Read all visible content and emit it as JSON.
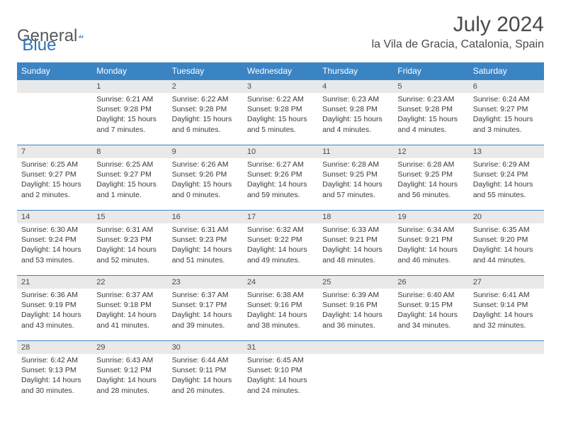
{
  "logo": {
    "general": "General",
    "blue": "Blue"
  },
  "title": "July 2024",
  "location": "la Vila de Gracia, Catalonia, Spain",
  "colors": {
    "header_bg": "#3b84c4",
    "header_fg": "#ffffff",
    "daynum_bg": "#e9e9e9",
    "border": "#3b84c4",
    "logo_blue": "#2e72b8",
    "logo_gray": "#56595c",
    "text": "#3a3a3a",
    "background": "#ffffff"
  },
  "typography": {
    "title_fontsize": 30,
    "location_fontsize": 16,
    "header_fontsize": 12,
    "body_fontsize": 10.5
  },
  "weekdays": [
    "Sunday",
    "Monday",
    "Tuesday",
    "Wednesday",
    "Thursday",
    "Friday",
    "Saturday"
  ],
  "weeks": [
    [
      {
        "n": "",
        "sr": "",
        "ss": "",
        "dl": ""
      },
      {
        "n": "1",
        "sr": "Sunrise: 6:21 AM",
        "ss": "Sunset: 9:28 PM",
        "dl": "Daylight: 15 hours and 7 minutes."
      },
      {
        "n": "2",
        "sr": "Sunrise: 6:22 AM",
        "ss": "Sunset: 9:28 PM",
        "dl": "Daylight: 15 hours and 6 minutes."
      },
      {
        "n": "3",
        "sr": "Sunrise: 6:22 AM",
        "ss": "Sunset: 9:28 PM",
        "dl": "Daylight: 15 hours and 5 minutes."
      },
      {
        "n": "4",
        "sr": "Sunrise: 6:23 AM",
        "ss": "Sunset: 9:28 PM",
        "dl": "Daylight: 15 hours and 4 minutes."
      },
      {
        "n": "5",
        "sr": "Sunrise: 6:23 AM",
        "ss": "Sunset: 9:28 PM",
        "dl": "Daylight: 15 hours and 4 minutes."
      },
      {
        "n": "6",
        "sr": "Sunrise: 6:24 AM",
        "ss": "Sunset: 9:27 PM",
        "dl": "Daylight: 15 hours and 3 minutes."
      }
    ],
    [
      {
        "n": "7",
        "sr": "Sunrise: 6:25 AM",
        "ss": "Sunset: 9:27 PM",
        "dl": "Daylight: 15 hours and 2 minutes."
      },
      {
        "n": "8",
        "sr": "Sunrise: 6:25 AM",
        "ss": "Sunset: 9:27 PM",
        "dl": "Daylight: 15 hours and 1 minute."
      },
      {
        "n": "9",
        "sr": "Sunrise: 6:26 AM",
        "ss": "Sunset: 9:26 PM",
        "dl": "Daylight: 15 hours and 0 minutes."
      },
      {
        "n": "10",
        "sr": "Sunrise: 6:27 AM",
        "ss": "Sunset: 9:26 PM",
        "dl": "Daylight: 14 hours and 59 minutes."
      },
      {
        "n": "11",
        "sr": "Sunrise: 6:28 AM",
        "ss": "Sunset: 9:25 PM",
        "dl": "Daylight: 14 hours and 57 minutes."
      },
      {
        "n": "12",
        "sr": "Sunrise: 6:28 AM",
        "ss": "Sunset: 9:25 PM",
        "dl": "Daylight: 14 hours and 56 minutes."
      },
      {
        "n": "13",
        "sr": "Sunrise: 6:29 AM",
        "ss": "Sunset: 9:24 PM",
        "dl": "Daylight: 14 hours and 55 minutes."
      }
    ],
    [
      {
        "n": "14",
        "sr": "Sunrise: 6:30 AM",
        "ss": "Sunset: 9:24 PM",
        "dl": "Daylight: 14 hours and 53 minutes."
      },
      {
        "n": "15",
        "sr": "Sunrise: 6:31 AM",
        "ss": "Sunset: 9:23 PM",
        "dl": "Daylight: 14 hours and 52 minutes."
      },
      {
        "n": "16",
        "sr": "Sunrise: 6:31 AM",
        "ss": "Sunset: 9:23 PM",
        "dl": "Daylight: 14 hours and 51 minutes."
      },
      {
        "n": "17",
        "sr": "Sunrise: 6:32 AM",
        "ss": "Sunset: 9:22 PM",
        "dl": "Daylight: 14 hours and 49 minutes."
      },
      {
        "n": "18",
        "sr": "Sunrise: 6:33 AM",
        "ss": "Sunset: 9:21 PM",
        "dl": "Daylight: 14 hours and 48 minutes."
      },
      {
        "n": "19",
        "sr": "Sunrise: 6:34 AM",
        "ss": "Sunset: 9:21 PM",
        "dl": "Daylight: 14 hours and 46 minutes."
      },
      {
        "n": "20",
        "sr": "Sunrise: 6:35 AM",
        "ss": "Sunset: 9:20 PM",
        "dl": "Daylight: 14 hours and 44 minutes."
      }
    ],
    [
      {
        "n": "21",
        "sr": "Sunrise: 6:36 AM",
        "ss": "Sunset: 9:19 PM",
        "dl": "Daylight: 14 hours and 43 minutes."
      },
      {
        "n": "22",
        "sr": "Sunrise: 6:37 AM",
        "ss": "Sunset: 9:18 PM",
        "dl": "Daylight: 14 hours and 41 minutes."
      },
      {
        "n": "23",
        "sr": "Sunrise: 6:37 AM",
        "ss": "Sunset: 9:17 PM",
        "dl": "Daylight: 14 hours and 39 minutes."
      },
      {
        "n": "24",
        "sr": "Sunrise: 6:38 AM",
        "ss": "Sunset: 9:16 PM",
        "dl": "Daylight: 14 hours and 38 minutes."
      },
      {
        "n": "25",
        "sr": "Sunrise: 6:39 AM",
        "ss": "Sunset: 9:16 PM",
        "dl": "Daylight: 14 hours and 36 minutes."
      },
      {
        "n": "26",
        "sr": "Sunrise: 6:40 AM",
        "ss": "Sunset: 9:15 PM",
        "dl": "Daylight: 14 hours and 34 minutes."
      },
      {
        "n": "27",
        "sr": "Sunrise: 6:41 AM",
        "ss": "Sunset: 9:14 PM",
        "dl": "Daylight: 14 hours and 32 minutes."
      }
    ],
    [
      {
        "n": "28",
        "sr": "Sunrise: 6:42 AM",
        "ss": "Sunset: 9:13 PM",
        "dl": "Daylight: 14 hours and 30 minutes."
      },
      {
        "n": "29",
        "sr": "Sunrise: 6:43 AM",
        "ss": "Sunset: 9:12 PM",
        "dl": "Daylight: 14 hours and 28 minutes."
      },
      {
        "n": "30",
        "sr": "Sunrise: 6:44 AM",
        "ss": "Sunset: 9:11 PM",
        "dl": "Daylight: 14 hours and 26 minutes."
      },
      {
        "n": "31",
        "sr": "Sunrise: 6:45 AM",
        "ss": "Sunset: 9:10 PM",
        "dl": "Daylight: 14 hours and 24 minutes."
      },
      {
        "n": "",
        "sr": "",
        "ss": "",
        "dl": ""
      },
      {
        "n": "",
        "sr": "",
        "ss": "",
        "dl": ""
      },
      {
        "n": "",
        "sr": "",
        "ss": "",
        "dl": ""
      }
    ]
  ]
}
